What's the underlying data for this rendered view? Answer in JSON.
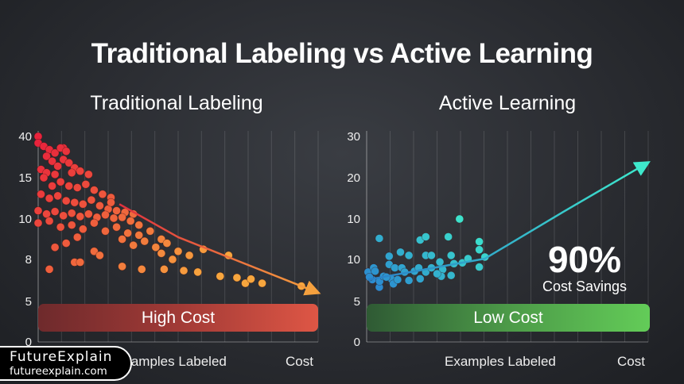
{
  "title": "Traditional Labeling vs Active Learning",
  "chart_data": [
    {
      "type": "scatter",
      "title": "Traditional Labeling",
      "xlabel": "Examples Labeled",
      "x_end_label": "Cost",
      "y_tick_labels": [
        "40",
        "15",
        "10",
        "8",
        "5",
        "0"
      ],
      "grid": "vertical",
      "band_label": "High Cost",
      "colors": {
        "start": "#e8233c",
        "end": "#f7a63e",
        "band_start": "#6e2a2c",
        "band_end": "#de5645"
      },
      "points": [
        [
          0,
          40
        ],
        [
          9,
          33
        ],
        [
          0,
          36
        ],
        [
          2,
          34
        ],
        [
          4,
          32
        ],
        [
          6,
          30
        ],
        [
          8,
          33
        ],
        [
          10,
          31
        ],
        [
          3,
          28
        ],
        [
          5,
          25
        ],
        [
          7,
          22
        ],
        [
          9,
          26
        ],
        [
          11,
          24
        ],
        [
          13,
          21
        ],
        [
          1,
          20
        ],
        [
          3,
          18
        ],
        [
          6,
          17
        ],
        [
          12,
          18
        ],
        [
          15,
          19
        ],
        [
          18,
          17
        ],
        [
          2,
          15
        ],
        [
          5,
          14
        ],
        [
          8,
          14.5
        ],
        [
          11,
          14
        ],
        [
          14,
          13.8
        ],
        [
          17,
          14.2
        ],
        [
          20,
          13.5
        ],
        [
          23,
          13
        ],
        [
          26,
          12.6
        ],
        [
          1,
          13
        ],
        [
          4,
          12.5
        ],
        [
          7,
          12.8
        ],
        [
          10,
          12.2
        ],
        [
          13,
          12
        ],
        [
          16,
          11.8
        ],
        [
          19,
          12.3
        ],
        [
          22,
          11.6
        ],
        [
          25,
          11.2
        ],
        [
          28,
          11
        ],
        [
          31,
          10.8
        ],
        [
          34,
          10.6
        ],
        [
          0,
          11
        ],
        [
          3,
          10.6
        ],
        [
          6,
          10.9
        ],
        [
          9,
          10.4
        ],
        [
          12,
          10.7
        ],
        [
          15,
          10.3
        ],
        [
          18,
          10.6
        ],
        [
          21,
          10.2
        ],
        [
          24,
          10.5
        ],
        [
          27,
          10.1
        ],
        [
          30,
          10.2
        ],
        [
          33,
          9.9
        ],
        [
          36,
          9.7
        ],
        [
          0,
          9.8
        ],
        [
          4,
          9.9
        ],
        [
          8,
          9.6
        ],
        [
          12,
          9.7
        ],
        [
          16,
          9.5
        ],
        [
          20,
          9.8
        ],
        [
          24,
          9.4
        ],
        [
          28,
          9.6
        ],
        [
          32,
          9.3
        ],
        [
          36,
          9.2
        ],
        [
          40,
          9.4
        ],
        [
          44,
          9.0
        ],
        [
          38,
          8.9
        ],
        [
          42,
          8.6
        ],
        [
          46,
          8.8
        ],
        [
          50,
          8.4
        ],
        [
          54,
          8.2
        ],
        [
          48,
          8.0
        ],
        [
          44,
          8.3
        ],
        [
          26,
          12
        ],
        [
          30,
          9.0
        ],
        [
          34,
          8.7
        ],
        [
          6,
          8.6
        ],
        [
          10,
          8.8
        ],
        [
          20,
          8.4
        ],
        [
          22,
          8.2
        ],
        [
          14,
          9.1
        ],
        [
          4,
          7.3
        ],
        [
          13,
          7.8
        ],
        [
          15,
          7.8
        ],
        [
          30,
          7.5
        ],
        [
          37,
          7.3
        ],
        [
          45,
          7.3
        ],
        [
          52,
          7.2
        ],
        [
          57,
          7.1
        ],
        [
          59,
          8.5
        ],
        [
          68,
          8.2
        ],
        [
          65,
          6.8
        ],
        [
          71,
          6.7
        ],
        [
          74,
          6.3
        ],
        [
          76,
          6.6
        ],
        [
          80,
          6.3
        ],
        [
          94,
          6.1
        ]
      ],
      "trend": [
        [
          29,
          11.8
        ],
        [
          50,
          9.1
        ],
        [
          70,
          8.0
        ],
        [
          99,
          5.7
        ]
      ]
    },
    {
      "type": "scatter",
      "title": "Active Learning",
      "xlabel": "Examples Labeled",
      "x_end_label": "Cost",
      "y_tick_labels": [
        "30",
        "20",
        "10",
        "10",
        "5",
        "0"
      ],
      "grid": "vertical",
      "band_label": "Low Cost",
      "annotation": {
        "value": "90%",
        "label": "Cost Savings"
      },
      "colors": {
        "start": "#2a86d0",
        "end": "#3ee8cc",
        "band_start": "#2f5a34",
        "band_end": "#63cc58"
      },
      "points": [
        [
          4.5,
          12.6
        ],
        [
          33,
          15
        ],
        [
          19,
          12.4
        ],
        [
          21,
          12.8
        ],
        [
          29,
          12.8
        ],
        [
          40,
          12.2
        ],
        [
          40,
          11.2
        ],
        [
          42,
          10.3
        ],
        [
          40,
          9.1
        ],
        [
          8,
          10.4
        ],
        [
          12,
          10.9
        ],
        [
          15,
          10.5
        ],
        [
          21,
          10.5
        ],
        [
          23,
          10.5
        ],
        [
          30,
          10.5
        ],
        [
          31,
          9.5
        ],
        [
          34,
          9.6
        ],
        [
          36,
          10.1
        ],
        [
          26,
          9.7
        ],
        [
          27,
          8.8
        ],
        [
          26.5,
          8
        ],
        [
          30,
          8.1
        ],
        [
          0.5,
          8.5
        ],
        [
          2.5,
          9
        ],
        [
          3,
          8.6
        ],
        [
          2,
          7.6
        ],
        [
          4.5,
          6.7
        ],
        [
          4.6,
          7.4
        ],
        [
          6,
          8
        ],
        [
          8,
          9.4
        ],
        [
          9,
          7.6
        ],
        [
          10,
          9
        ],
        [
          9.5,
          7.1
        ],
        [
          11,
          7.6
        ],
        [
          12.5,
          9
        ],
        [
          13.5,
          8.5
        ],
        [
          15,
          7.5
        ],
        [
          17,
          8.6
        ],
        [
          18.5,
          9
        ],
        [
          19,
          7.7
        ],
        [
          21,
          8.5
        ],
        [
          23,
          9
        ],
        [
          25,
          8.3
        ],
        [
          7,
          7.9
        ],
        [
          1,
          7.9
        ]
      ],
      "trend": [
        [
          0.5,
          7.6
        ],
        [
          42,
          10.1
        ],
        [
          70,
          15.9
        ],
        [
          99,
          23.3
        ]
      ]
    }
  ],
  "logo": {
    "name": "FutureExplain",
    "url": "futureexplain.com"
  }
}
